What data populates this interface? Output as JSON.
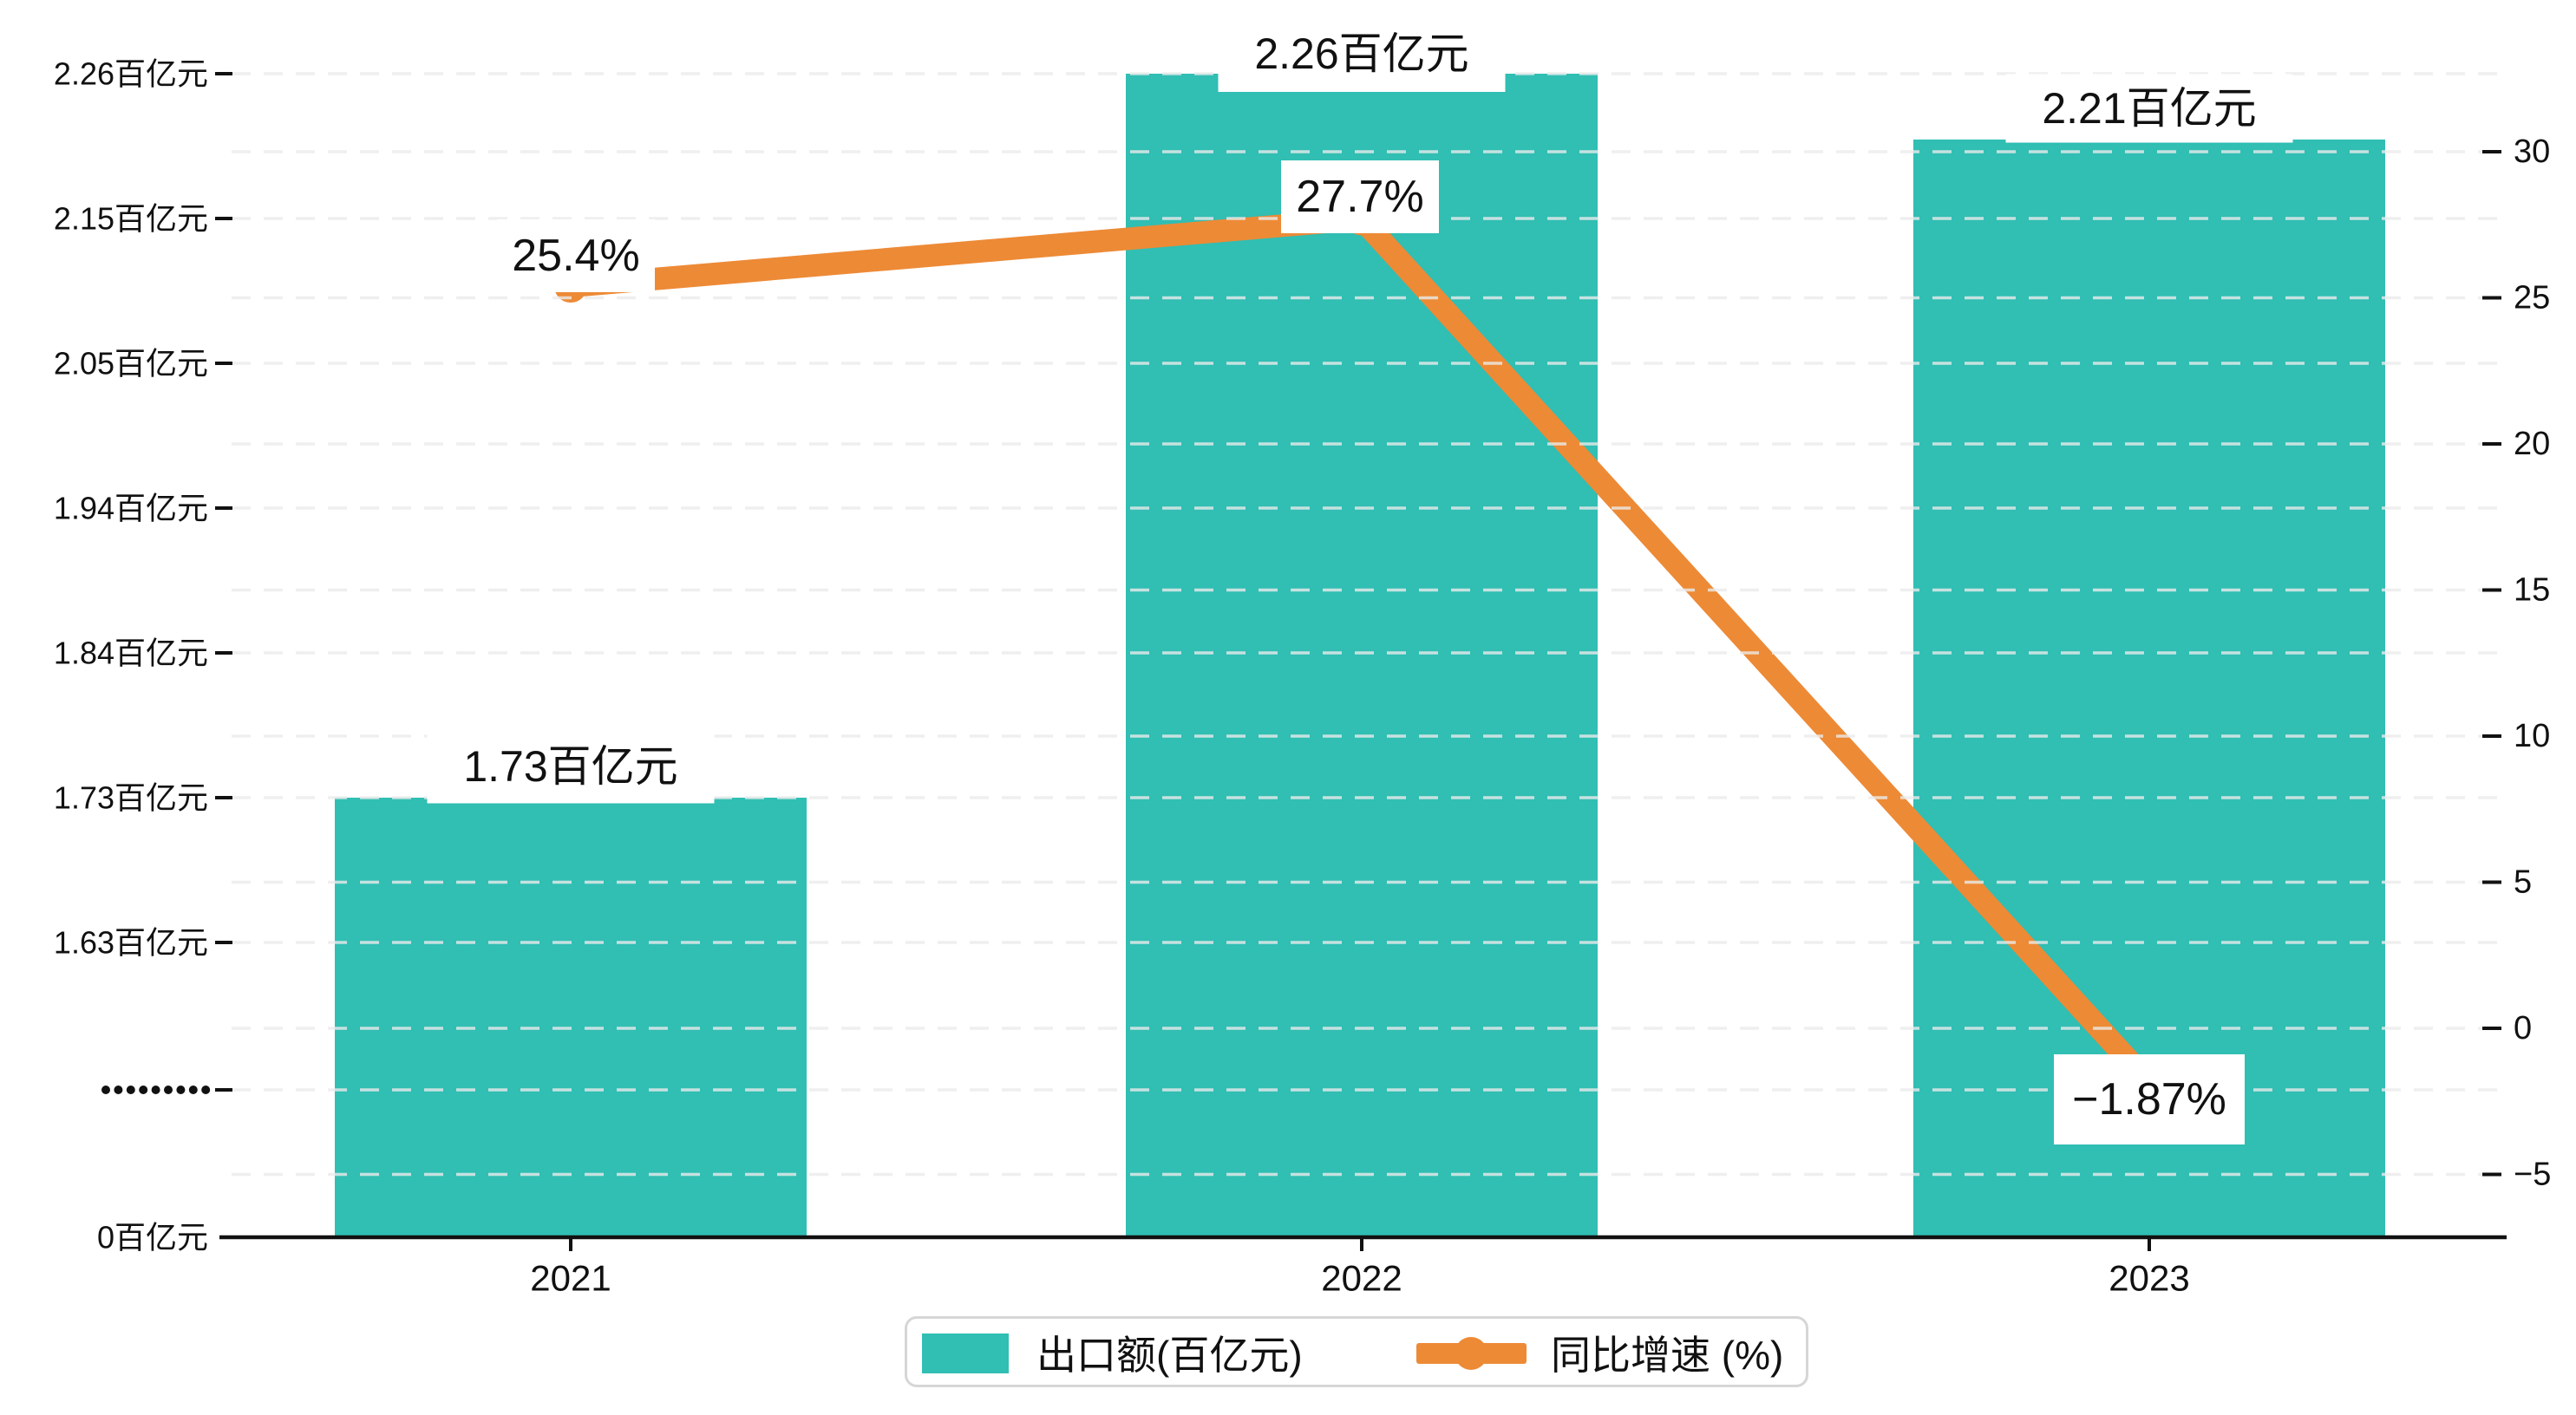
{
  "chart_data": {
    "type": "bar+line",
    "title": "",
    "categories": [
      "2021",
      "2022",
      "2023"
    ],
    "series": [
      {
        "name": "出口额(百亿元)",
        "type": "bar",
        "axis": "left",
        "color": "#31beb3",
        "values": [
          1.73,
          2.26,
          2.21
        ],
        "data_labels": [
          "1.73百亿元",
          "2.26百亿元",
          "2.21百亿元"
        ]
      },
      {
        "name": "同比增速 (%)",
        "type": "line",
        "axis": "right",
        "color": "#ed8a36",
        "values": [
          25.4,
          27.7,
          -1.87
        ],
        "data_labels": [
          "25.4%",
          "27.7%",
          "−1.87%"
        ]
      }
    ],
    "left_axis": {
      "tick_labels": [
        "2.26百亿元",
        "2.15百亿元",
        "2.05百亿元",
        "1.94百亿元",
        "1.84百亿元",
        "1.73百亿元",
        "1.63百亿元"
      ],
      "tick_values": [
        2.26,
        2.15,
        2.05,
        1.94,
        1.84,
        1.73,
        1.63
      ],
      "break_label": "·········",
      "zero_label": "0百亿元"
    },
    "right_axis": {
      "tick_labels": [
        "30",
        "25",
        "20",
        "15",
        "10",
        "5",
        "0",
        "−5"
      ],
      "tick_values": [
        30,
        25,
        20,
        15,
        10,
        5,
        0,
        -5
      ]
    },
    "legend": {
      "position": "bottom",
      "items": [
        {
          "label": "出口额(百亿元)",
          "marker": "square",
          "color": "#31beb3"
        },
        {
          "label": "同比增速 (%)",
          "marker": "line-dot",
          "color": "#ed8a36"
        }
      ]
    },
    "grid": true,
    "axis_ranges": {
      "left": "broken axis: 0 then 1.63–2.26 百亿元",
      "right": [
        -5,
        30
      ]
    }
  },
  "colors": {
    "bar": "#31beb3",
    "line": "#ed8a36",
    "text": "#111111",
    "grid": "#ebebeb",
    "axis": "#111111",
    "label_box_bg": "#ffffff",
    "legend_border": "#d6d6d6"
  }
}
